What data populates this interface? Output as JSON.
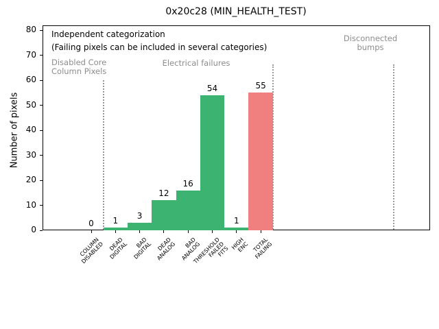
{
  "figure": {
    "title": "0x20c28 (MIN_HEALTH_TEST)",
    "ylabel": "Number of pixels"
  },
  "annotations": {
    "independent_line1": "Independent categorization",
    "independent_line2": "(Failing pixels can be included in several categories)",
    "region_disabled": "Disabled Core\nColumn Pixels",
    "region_electrical": "Electrical failures",
    "region_disconnected": "Disconnected\nbumps"
  },
  "colors": {
    "bar_green": "#3cb371",
    "bar_red": "#f08080",
    "annotation_gray": "#8c8c8c",
    "separator_gray": "#999999"
  },
  "chart_data": {
    "type": "bar",
    "title": "0x20c28 (MIN_HEALTH_TEST)",
    "xlabel": "",
    "ylabel": "Number of pixels",
    "ylim": [
      0,
      82
    ],
    "yticks": [
      0,
      10,
      20,
      30,
      40,
      50,
      60,
      70,
      80
    ],
    "grid": false,
    "legend": "none",
    "categories": [
      "COLUMN\nDISABLED",
      "DEAD\nDIGITAL",
      "BAD\nDIGITAL",
      "DEAD\nANALOG",
      "BAD\nANALOG",
      "THRESHOLD\nFAILED\nFITS",
      "HIGH\nENC",
      "TOTAL\nFAILING"
    ],
    "values": [
      0,
      1,
      3,
      12,
      16,
      54,
      1,
      55
    ],
    "value_labels": [
      "0",
      "1",
      "3",
      "12",
      "16",
      "54",
      "1",
      "55"
    ],
    "bar_colors": [
      "#3cb371",
      "#3cb371",
      "#3cb371",
      "#3cb371",
      "#3cb371",
      "#3cb371",
      "#3cb371",
      "#f08080"
    ],
    "separator_positions": [
      0.5,
      7.5,
      12.5
    ],
    "region_labels": [
      "Disabled Core\nColumn Pixels",
      "Electrical failures",
      "Disconnected\nbumps"
    ]
  }
}
